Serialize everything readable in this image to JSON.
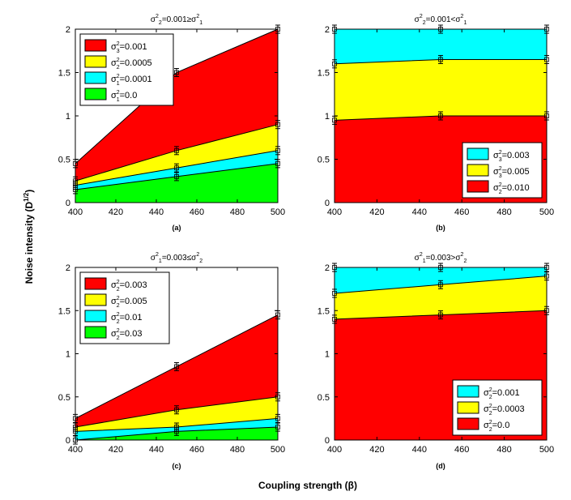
{
  "figure": {
    "xlabel": "Coupling strength (β)",
    "ylabel": "Noise intensity (D",
    "ylabel_sup": "1/2",
    "ylabel_close": ")"
  },
  "colors": {
    "red": "#ff0000",
    "yellow": "#ffff00",
    "cyan": "#00ffff",
    "green": "#00ff00",
    "errorbar": "#000000"
  },
  "chart_data": [
    {
      "type": "area",
      "stacked": true,
      "panel_label": "(a)",
      "title": {
        "pre": "σ",
        "s1": "2",
        "b1": "2",
        "mid": "=0.001≥σ",
        "s2": "2",
        "b2": "1"
      },
      "x": [
        400,
        450,
        500
      ],
      "xlim": [
        400,
        500
      ],
      "ylim": [
        0,
        2
      ],
      "xticks": [
        400,
        420,
        440,
        460,
        480,
        500
      ],
      "yticks": [
        0,
        0.5,
        1,
        1.5,
        2
      ],
      "legend_position": "top-left",
      "series": [
        {
          "name": "σ=0.001",
          "name_pre": "σ",
          "name_sup": "2",
          "name_sub": "3",
          "name_val": "=0.001",
          "color": "red",
          "upper": [
            0.45,
            1.5,
            2.0
          ],
          "lower": [
            0.25,
            0.6,
            0.9
          ]
        },
        {
          "name": "σ=0.0005",
          "name_pre": "σ",
          "name_sup": "2",
          "name_sub": "2",
          "name_val": "=0.0005",
          "color": "yellow",
          "upper": [
            0.25,
            0.6,
            0.9
          ],
          "lower": [
            0.2,
            0.4,
            0.6
          ]
        },
        {
          "name": "σ=0.0001",
          "name_pre": "σ",
          "name_sup": "2",
          "name_sub": "1",
          "name_val": "=0.0001",
          "color": "cyan",
          "upper": [
            0.2,
            0.4,
            0.6
          ],
          "lower": [
            0.15,
            0.3,
            0.45
          ]
        },
        {
          "name": "σ=0.0",
          "name_pre": "σ",
          "name_sup": "2",
          "name_sub": "1",
          "name_val": "=0.0",
          "color": "green",
          "upper": [
            0.15,
            0.3,
            0.45
          ],
          "lower": [
            0,
            0,
            0
          ]
        }
      ]
    },
    {
      "type": "area",
      "stacked": true,
      "panel_label": "(b)",
      "title": {
        "pre": "σ",
        "s1": "2",
        "b1": "2",
        "mid": "=0.001<σ",
        "s2": "2",
        "b2": "1"
      },
      "x": [
        400,
        450,
        500
      ],
      "xlim": [
        400,
        500
      ],
      "ylim": [
        0,
        2
      ],
      "xticks": [
        400,
        420,
        440,
        460,
        480,
        500
      ],
      "yticks": [
        0,
        0.5,
        1,
        1.5,
        2
      ],
      "legend_position": "bottom-right",
      "series": [
        {
          "name": "σ=0.003",
          "name_pre": "σ",
          "name_sup": "2",
          "name_sub": "3",
          "name_val": "=0.003",
          "color": "cyan",
          "upper": [
            2.0,
            2.0,
            2.0
          ],
          "lower": [
            1.6,
            1.65,
            1.65
          ]
        },
        {
          "name": "σ=0.005",
          "name_pre": "σ",
          "name_sup": "2",
          "name_sub": "3",
          "name_val": "=0.005",
          "color": "yellow",
          "upper": [
            1.6,
            1.65,
            1.65
          ],
          "lower": [
            0.95,
            1.0,
            1.0
          ]
        },
        {
          "name": "σ=0.010",
          "name_pre": "σ",
          "name_sup": "2",
          "name_sub": "2",
          "name_val": "=0.010",
          "color": "red",
          "upper": [
            0.95,
            1.0,
            1.0
          ],
          "lower": [
            0,
            0,
            0
          ]
        }
      ]
    },
    {
      "type": "area",
      "stacked": true,
      "panel_label": "(c)",
      "title": {
        "pre": "σ",
        "s1": "2",
        "b1": "1",
        "mid": "=0.003≤σ",
        "s2": "2",
        "b2": "2"
      },
      "x": [
        400,
        450,
        500
      ],
      "xlim": [
        400,
        500
      ],
      "ylim": [
        0,
        2
      ],
      "xticks": [
        400,
        420,
        440,
        460,
        480,
        500
      ],
      "yticks": [
        0,
        0.5,
        1,
        1.5,
        2
      ],
      "legend_position": "top-left",
      "series": [
        {
          "name": "σ=0.003",
          "name_pre": "σ",
          "name_sup": "2",
          "name_sub": "2",
          "name_val": "=0.003",
          "color": "red",
          "upper": [
            0.25,
            0.85,
            1.45
          ],
          "lower": [
            0.15,
            0.35,
            0.5
          ]
        },
        {
          "name": "σ=0.005",
          "name_pre": "σ",
          "name_sup": "2",
          "name_sub": "2",
          "name_val": "=0.005",
          "color": "yellow",
          "upper": [
            0.15,
            0.35,
            0.5
          ],
          "lower": [
            0.1,
            0.15,
            0.25
          ]
        },
        {
          "name": "σ=0.01",
          "name_pre": "σ",
          "name_sup": "2",
          "name_sub": "2",
          "name_val": "=0.01",
          "color": "cyan",
          "upper": [
            0.1,
            0.15,
            0.25
          ],
          "lower": [
            0.0,
            0.1,
            0.15
          ]
        },
        {
          "name": "σ=0.03",
          "name_pre": "σ",
          "name_sup": "2",
          "name_sub": "2",
          "name_val": "=0.03",
          "color": "green",
          "upper": [
            0.0,
            0.1,
            0.15
          ],
          "lower": [
            0,
            0,
            0
          ]
        }
      ]
    },
    {
      "type": "area",
      "stacked": true,
      "panel_label": "(d)",
      "title": {
        "pre": "σ",
        "s1": "2",
        "b1": "1",
        "mid": "=0.003>σ",
        "s2": "2",
        "b2": "2"
      },
      "x": [
        400,
        450,
        500
      ],
      "xlim": [
        400,
        500
      ],
      "ylim": [
        0,
        2
      ],
      "xticks": [
        400,
        420,
        440,
        460,
        480,
        500
      ],
      "yticks": [
        0,
        0.5,
        1,
        1.5,
        2
      ],
      "legend_position": "bottom-right",
      "series": [
        {
          "name": "σ=0.001",
          "name_pre": "σ",
          "name_sup": "2",
          "name_sub": "2",
          "name_val": "=0.001",
          "color": "cyan",
          "upper": [
            2.0,
            2.0,
            2.0
          ],
          "lower": [
            1.7,
            1.8,
            1.9
          ]
        },
        {
          "name": "σ=0.0003",
          "name_pre": "σ",
          "name_sup": "2",
          "name_sub": "2",
          "name_val": "=0.0003",
          "color": "yellow",
          "upper": [
            1.7,
            1.8,
            1.9
          ],
          "lower": [
            1.4,
            1.45,
            1.5
          ]
        },
        {
          "name": "σ=0.0",
          "name_pre": "σ",
          "name_sup": "2",
          "name_sub": "2",
          "name_val": "=0.0",
          "color": "red",
          "upper": [
            1.4,
            1.45,
            1.5
          ],
          "lower": [
            0,
            0,
            0
          ]
        }
      ]
    }
  ]
}
